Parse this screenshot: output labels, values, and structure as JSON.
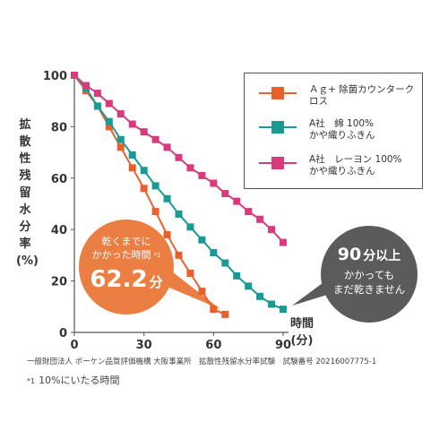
{
  "chart_data": {
    "type": "line",
    "xlabel": "時間",
    "xunit": "(分)",
    "ylabel": "拡散性残留水分率(%)",
    "xlim": [
      0,
      90
    ],
    "ylim": [
      0,
      100
    ],
    "x_ticks": [
      0,
      30,
      60,
      90
    ],
    "y_ticks": [
      0,
      20,
      40,
      60,
      80,
      100
    ],
    "grid": false,
    "legend_position": "top-right",
    "series": [
      {
        "name": "Ａｇ+ 除菌カウンタークロス",
        "color": "#e8602c",
        "marker": "square",
        "x": [
          0,
          5,
          10,
          15,
          20,
          25,
          30,
          35,
          40,
          45,
          50,
          55,
          60,
          65
        ],
        "y": [
          100,
          94,
          88,
          80,
          72,
          64,
          56,
          47,
          38,
          30,
          23,
          16,
          9,
          7
        ]
      },
      {
        "name": "A社　綿 100%\nかや織りふきん",
        "color": "#1a9a94",
        "marker": "square",
        "x": [
          0,
          5,
          10,
          15,
          20,
          25,
          30,
          35,
          40,
          45,
          50,
          55,
          60,
          65,
          70,
          75,
          80,
          85,
          90
        ],
        "y": [
          100,
          95,
          88,
          82,
          75,
          69,
          63,
          57,
          52,
          46,
          41,
          36,
          31,
          27,
          22,
          18,
          14,
          11,
          9
        ]
      },
      {
        "name": "A社　レーヨン 100%\nかや織りふきん",
        "color": "#d93a7c",
        "marker": "square",
        "x": [
          0,
          5,
          10,
          15,
          20,
          25,
          30,
          35,
          40,
          45,
          50,
          55,
          60,
          65,
          70,
          75,
          80,
          85,
          90
        ],
        "y": [
          100,
          96,
          93,
          89,
          85,
          81,
          78,
          75,
          72,
          68,
          64,
          61,
          58,
          54,
          51,
          47,
          44,
          40,
          35
        ]
      }
    ],
    "annotations": {
      "orange_line1": "乾くまでに",
      "orange_line2": "かかった時間",
      "orange_note_mark": "*1",
      "orange_value": "62.2",
      "orange_unit": "分",
      "gray_line1_value": "90",
      "gray_line1_unit": "分以上",
      "gray_line2": "かかっても",
      "gray_line3": "まだ乾きません"
    }
  },
  "footer": {
    "source": "一般財団法人 ボーケン品質評価機構 大阪事業所　拡散性残留水分率試験　試験番号 20216007775-1",
    "note_mark": "*1",
    "note": "10%にいたる時間"
  }
}
